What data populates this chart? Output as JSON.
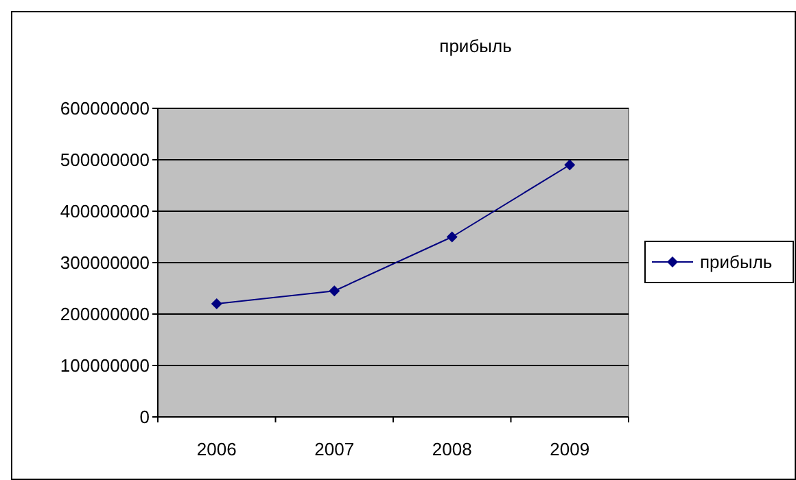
{
  "chart_data": {
    "type": "line",
    "title": "прибыль",
    "categories": [
      "2006",
      "2007",
      "2008",
      "2009"
    ],
    "series": [
      {
        "name": "прибыль",
        "color": "#000080",
        "values": [
          220000000,
          245000000,
          350000000,
          490000000
        ]
      }
    ],
    "ylim": [
      0,
      600000000
    ],
    "yticks": [
      0,
      100000000,
      200000000,
      300000000,
      400000000,
      500000000,
      600000000
    ],
    "grid": "y",
    "legend": "right",
    "marker": "diamond",
    "line_style": "solid"
  }
}
